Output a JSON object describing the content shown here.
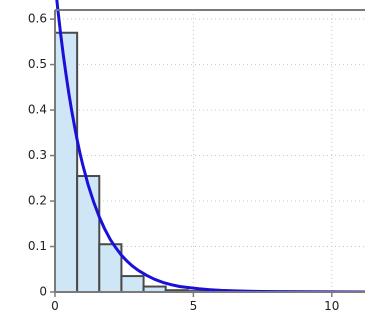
{
  "chart_data": {
    "type": "bar",
    "title": "",
    "xlabel": "",
    "ylabel": "",
    "xlim": [
      0,
      11.2
    ],
    "ylim": [
      0,
      0.62
    ],
    "x_ticks": [
      0,
      5,
      10
    ],
    "y_ticks": [
      0,
      0.1,
      0.2,
      0.3,
      0.4,
      0.5,
      0.6
    ],
    "x_tick_labels": [
      "0",
      "5",
      "10"
    ],
    "y_tick_labels": [
      "0",
      "0.1",
      "0.2",
      "0.3",
      "0.4",
      "0.5",
      "0.6"
    ],
    "grid": true,
    "legend": "none",
    "histogram": {
      "bin_edges": [
        0,
        0.8,
        1.6,
        2.4,
        3.2,
        4.0,
        4.8,
        5.6
      ],
      "values": [
        0.57,
        0.255,
        0.105,
        0.035,
        0.012,
        0.004,
        0.002
      ]
    },
    "curve": {
      "type": "line",
      "x": [
        0,
        0.1,
        0.2,
        0.3,
        0.4,
        0.5,
        0.6,
        0.7,
        0.8,
        0.9,
        1.0,
        1.2,
        1.4,
        1.6,
        1.8,
        2.0,
        2.2,
        2.4,
        2.6,
        2.8,
        3.0,
        3.3,
        3.6,
        3.9,
        4.2,
        4.5,
        4.8,
        5.2,
        5.6,
        6.0,
        6.5,
        7.0,
        7.5,
        8.0,
        9.0,
        10.0,
        11.2
      ],
      "y": [
        0.68,
        0.622,
        0.57,
        0.521,
        0.477,
        0.437,
        0.4,
        0.366,
        0.335,
        0.306,
        0.28,
        0.235,
        0.197,
        0.165,
        0.138,
        0.115,
        0.097,
        0.081,
        0.068,
        0.057,
        0.048,
        0.037,
        0.028,
        0.021,
        0.016,
        0.012,
        0.01,
        0.007,
        0.005,
        0.0035,
        0.0025,
        0.0017,
        0.0012,
        0.0008,
        0.0004,
        0.0002,
        0.0001
      ]
    },
    "colors": {
      "bar_fill": "#cfe6f7",
      "bar_stroke": "#4a4a4a",
      "curve": "#1a10d8",
      "grid": "#c8c8c8",
      "axis": "#7a7a7a"
    }
  }
}
